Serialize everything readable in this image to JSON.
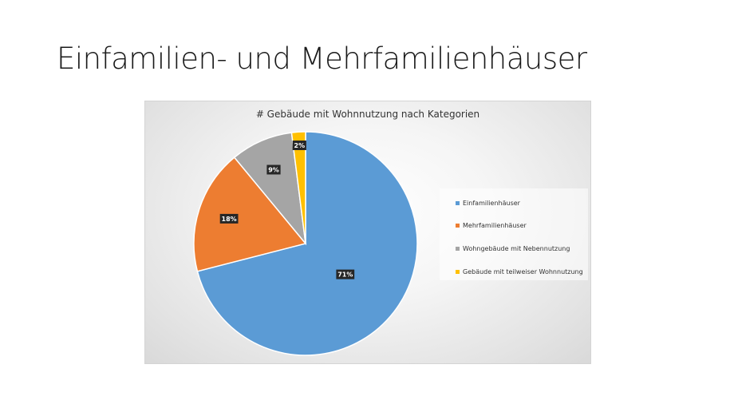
{
  "slide": {
    "title": "Einfamilien- und Mehrfamilienhäuser"
  },
  "chart_data": {
    "type": "pie",
    "title": "# Gebäude mit Wohnnutzung nach Kategorien",
    "categories": [
      "Einfamilienhäuser",
      "Mehrfamilienhäuser",
      "Wohngebäude mit Nebennutzung",
      "Gebäude mit teilweiser Wohnnutzung"
    ],
    "values": [
      71,
      18,
      9,
      2
    ],
    "labels": [
      "71%",
      "18%",
      "9%",
      "2%"
    ],
    "colors": [
      "#5b9bd5",
      "#ed7d31",
      "#a5a5a5",
      "#ffc000"
    ],
    "legend_position": "right"
  }
}
